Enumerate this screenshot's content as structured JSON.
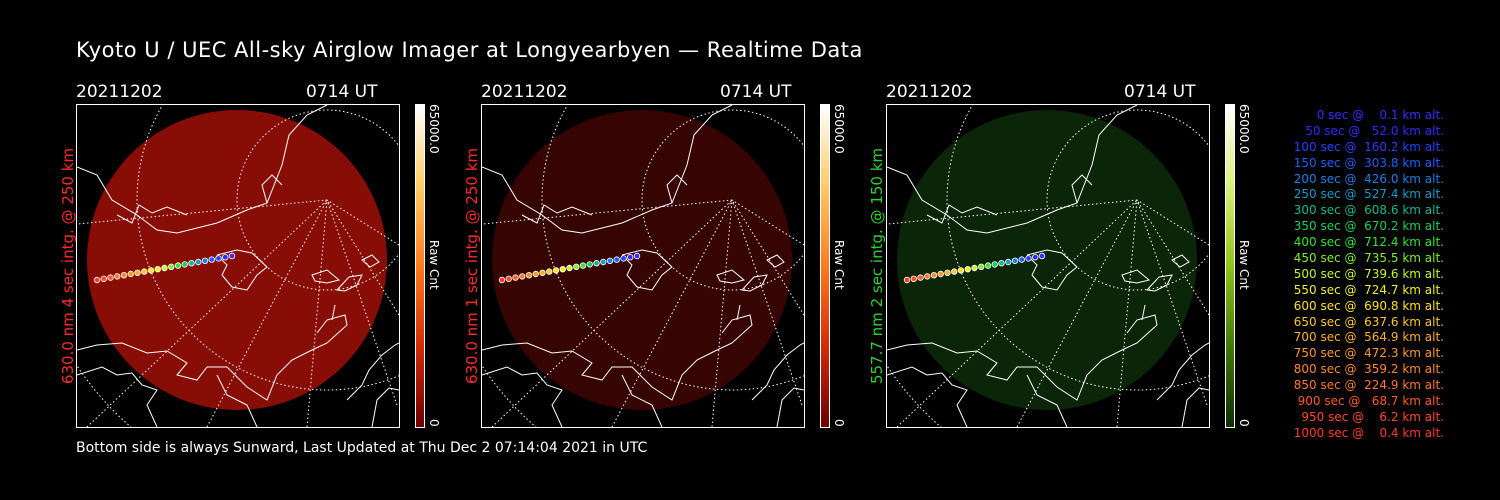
{
  "title": "Kyoto U / UEC All-sky Airglow Imager at Longyearbyen — Realtime Data",
  "panels": [
    {
      "date": "20211202",
      "time": "0714 UT",
      "side_label": "630.0 nm  4 sec intg. @ 250 km",
      "side_color": "#ff2a2a",
      "glow_color": "#a10f08",
      "glow_opacity": 0.85,
      "cbar_max": "65000.0",
      "cbar_min": "0",
      "cbar_unit": "Raw Cnt",
      "cbar_gradient": [
        "#ffffff",
        "#ffcc66",
        "#ff7a1a",
        "#d42a08",
        "#6b0000"
      ]
    },
    {
      "date": "20211202",
      "time": "0714 UT",
      "side_label": "630.0 nm  1 sec intg. @ 250 km",
      "side_color": "#ff2a2a",
      "glow_color": "#4a0505",
      "glow_opacity": 0.75,
      "cbar_max": "65000.0",
      "cbar_min": "0",
      "cbar_unit": "Raw Cnt",
      "cbar_gradient": [
        "#ffffff",
        "#ffcc66",
        "#ff7a1a",
        "#d42a08",
        "#6b0000"
      ]
    },
    {
      "date": "20211202",
      "time": "0714 UT",
      "side_label": "557.7 nm  2 sec intg. @ 150 km",
      "side_color": "#2ed12e",
      "glow_color": "#0e2e0a",
      "glow_opacity": 0.8,
      "cbar_max": "65000.0",
      "cbar_min": "0",
      "cbar_unit": "Raw Cnt",
      "cbar_gradient": [
        "#ffffff",
        "#d9f07a",
        "#8fc21a",
        "#3f7a08",
        "#0f2d00"
      ]
    }
  ],
  "footer": "Bottom side is always Sunward, Last Updated at Thu Dec  2 07:14:04 2021 in UTC",
  "legend": [
    {
      "text": "0 sec @    0.1 km alt.",
      "color": "#3d2bff"
    },
    {
      "text": "50 sec @   52.0 km alt.",
      "color": "#2f2bff"
    },
    {
      "text": "100 sec @  160.2 km alt.",
      "color": "#2640ff"
    },
    {
      "text": "150 sec @  303.8 km alt.",
      "color": "#1e5dff"
    },
    {
      "text": "200 sec @  426.0 km alt.",
      "color": "#1a7fe6"
    },
    {
      "text": "250 sec @  527.4 km alt.",
      "color": "#169ccc"
    },
    {
      "text": "300 sec @  608.6 km alt.",
      "color": "#14b98f"
    },
    {
      "text": "350 sec @  670.2 km alt.",
      "color": "#19cf5a"
    },
    {
      "text": "400 sec @  712.4 km alt.",
      "color": "#2ee62e"
    },
    {
      "text": "450 sec @  735.5 km alt.",
      "color": "#7ff02a"
    },
    {
      "text": "500 sec @  739.6 km alt.",
      "color": "#c8f52a"
    },
    {
      "text": "550 sec @  724.7 km alt.",
      "color": "#f0f02a"
    },
    {
      "text": "600 sec @  690.8 km alt.",
      "color": "#ffe02a"
    },
    {
      "text": "650 sec @  637.6 km alt.",
      "color": "#ffc82a"
    },
    {
      "text": "700 sec @  564.9 km alt.",
      "color": "#ffb02a"
    },
    {
      "text": "750 sec @  472.3 km alt.",
      "color": "#ff9a2a"
    },
    {
      "text": "800 sec @  359.2 km alt.",
      "color": "#ff8a2a"
    },
    {
      "text": "850 sec @  224.9 km alt.",
      "color": "#ff7a2a"
    },
    {
      "text": "900 sec @   68.7 km alt.",
      "color": "#ff5a2a"
    },
    {
      "text": "950 sec @    6.2 km alt.",
      "color": "#ff4a2a"
    },
    {
      "text": "1000 sec @    0.4 km alt.",
      "color": "#ff3a2a"
    }
  ]
}
